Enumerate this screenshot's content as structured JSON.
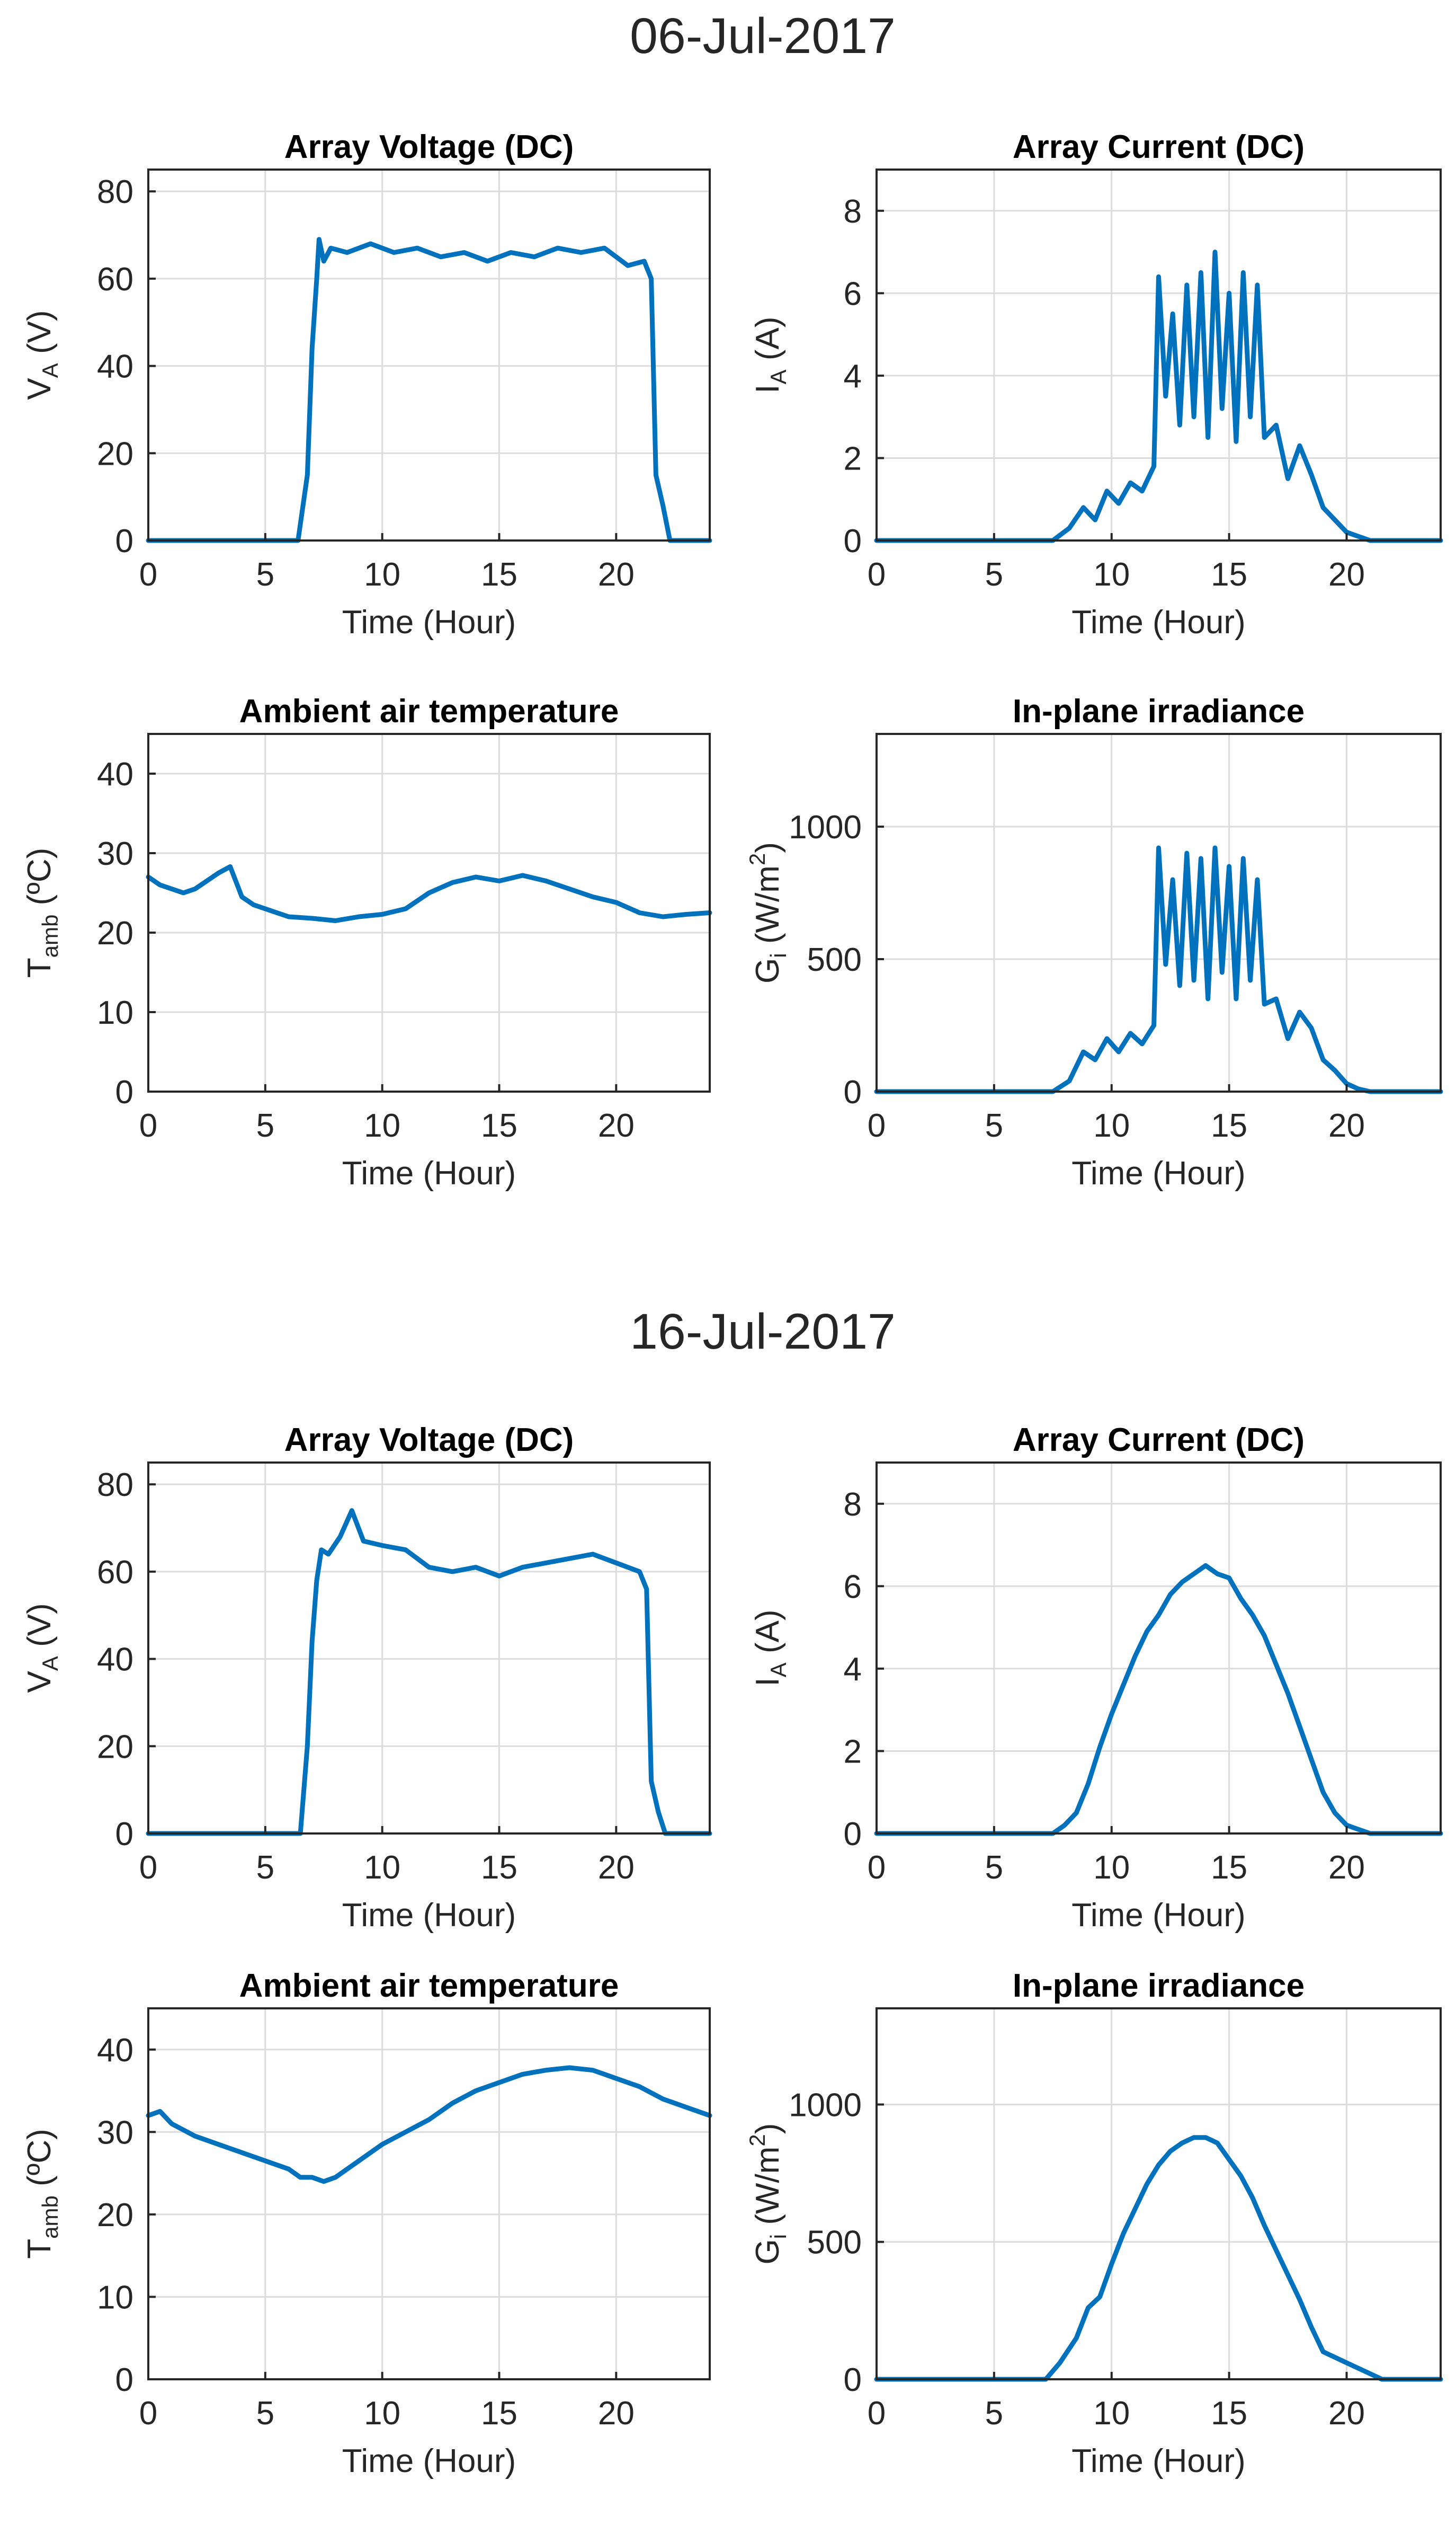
{
  "figure_titles": {
    "top": "06-Jul-2017",
    "bottom": "16-Jul-2017"
  },
  "colors": {
    "series": "#0072BD",
    "axis": "#262626",
    "grid": "#dcdcdc"
  },
  "chart_data": [
    {
      "type": "line",
      "group": "06-Jul-2017",
      "title": "Array Voltage (DC)",
      "xlabel": "Time (Hour)",
      "ylabel": {
        "main": "V",
        "sub": "A",
        "unit": " (V)"
      },
      "xlim": [
        0,
        24
      ],
      "ylim": [
        0,
        85
      ],
      "xticks": [
        0,
        5,
        10,
        15,
        20
      ],
      "yticks": [
        0,
        20,
        40,
        60,
        80
      ],
      "x": [
        0,
        6.4,
        6.8,
        7.0,
        7.2,
        7.3,
        7.5,
        7.8,
        8.5,
        9.5,
        10.5,
        11.5,
        12.5,
        13.5,
        14.5,
        15.5,
        16.5,
        17.5,
        18.5,
        19.5,
        20.5,
        21.2,
        21.5,
        21.7,
        22.0,
        22.3,
        24
      ],
      "y": [
        0,
        0,
        15,
        44,
        60,
        69,
        64,
        67,
        66,
        68,
        66,
        67,
        65,
        66,
        64,
        66,
        65,
        67,
        66,
        67,
        63,
        64,
        60,
        15,
        8,
        0,
        0
      ]
    },
    {
      "type": "line",
      "group": "06-Jul-2017",
      "title": "Array Current (DC)",
      "xlabel": "Time (Hour)",
      "ylabel": {
        "main": "I",
        "sub": "A",
        "unit": " (A)"
      },
      "xlim": [
        0,
        24
      ],
      "ylim": [
        0,
        9
      ],
      "xticks": [
        0,
        5,
        10,
        15,
        20
      ],
      "yticks": [
        0,
        2,
        4,
        6,
        8
      ],
      "x": [
        0,
        7.5,
        8.2,
        8.8,
        9.3,
        9.8,
        10.3,
        10.8,
        11.3,
        11.8,
        12.0,
        12.3,
        12.6,
        12.9,
        13.2,
        13.5,
        13.8,
        14.1,
        14.4,
        14.7,
        15.0,
        15.3,
        15.6,
        15.9,
        16.2,
        16.5,
        17.0,
        17.5,
        18.0,
        18.5,
        19.0,
        19.5,
        20.0,
        20.5,
        21.0,
        24
      ],
      "y": [
        0,
        0,
        0.3,
        0.8,
        0.5,
        1.2,
        0.9,
        1.4,
        1.2,
        1.8,
        6.4,
        3.5,
        5.5,
        2.8,
        6.2,
        3.0,
        6.5,
        2.5,
        7.0,
        3.2,
        6.0,
        2.4,
        6.5,
        3.0,
        6.2,
        2.5,
        2.8,
        1.5,
        2.3,
        1.6,
        0.8,
        0.5,
        0.2,
        0.1,
        0,
        0
      ]
    },
    {
      "type": "line",
      "group": "06-Jul-2017",
      "title": "Ambient air temperature",
      "xlabel": "Time (Hour)",
      "ylabel": {
        "main": "T",
        "sub": "amb",
        "unit": " (ºC)"
      },
      "xlim": [
        0,
        24
      ],
      "ylim": [
        0,
        45
      ],
      "xticks": [
        0,
        5,
        10,
        15,
        20
      ],
      "yticks": [
        0,
        10,
        20,
        30,
        40
      ],
      "x": [
        0,
        0.5,
        1,
        1.5,
        2,
        2.5,
        3,
        3.5,
        4,
        4.5,
        5,
        6,
        7,
        8,
        9,
        10,
        11,
        12,
        13,
        14,
        15,
        16,
        17,
        18,
        19,
        20,
        21,
        22,
        23,
        24
      ],
      "y": [
        27,
        26,
        25.5,
        25,
        25.5,
        26.5,
        27.5,
        28.3,
        24.5,
        23.5,
        23,
        22,
        21.8,
        21.5,
        22,
        22.3,
        23,
        25,
        26.3,
        27,
        26.5,
        27.2,
        26.5,
        25.5,
        24.5,
        23.8,
        22.5,
        22,
        22.3,
        22.5
      ]
    },
    {
      "type": "line",
      "group": "06-Jul-2017",
      "title": "In-plane irradiance",
      "xlabel": "Time (Hour)",
      "ylabel": {
        "main": "G",
        "sub": "i",
        "unit": " (W/m",
        "sup": "2",
        "close": ")"
      },
      "xlim": [
        0,
        24
      ],
      "ylim": [
        0,
        1350
      ],
      "xticks": [
        0,
        5,
        10,
        15,
        20
      ],
      "yticks": [
        0,
        500,
        1000
      ],
      "x": [
        0,
        7.5,
        8.2,
        8.8,
        9.3,
        9.8,
        10.3,
        10.8,
        11.3,
        11.8,
        12.0,
        12.3,
        12.6,
        12.9,
        13.2,
        13.5,
        13.8,
        14.1,
        14.4,
        14.7,
        15.0,
        15.3,
        15.6,
        15.9,
        16.2,
        16.5,
        17.0,
        17.5,
        18.0,
        18.5,
        19.0,
        19.5,
        20.0,
        20.5,
        21.0,
        24
      ],
      "y": [
        0,
        0,
        40,
        150,
        120,
        200,
        150,
        220,
        180,
        250,
        920,
        480,
        800,
        400,
        900,
        420,
        880,
        350,
        920,
        450,
        850,
        350,
        880,
        420,
        800,
        330,
        350,
        200,
        300,
        240,
        120,
        80,
        30,
        10,
        0,
        0
      ]
    },
    {
      "type": "line",
      "group": "16-Jul-2017",
      "title": "Array Voltage (DC)",
      "xlabel": "Time (Hour)",
      "ylabel": {
        "main": "V",
        "sub": "A",
        "unit": " (V)"
      },
      "xlim": [
        0,
        24
      ],
      "ylim": [
        0,
        85
      ],
      "xticks": [
        0,
        5,
        10,
        15,
        20
      ],
      "yticks": [
        0,
        20,
        40,
        60,
        80
      ],
      "x": [
        0,
        6.5,
        6.8,
        7.0,
        7.2,
        7.4,
        7.7,
        8.2,
        8.7,
        9.2,
        10,
        11,
        12,
        13,
        14,
        15,
        16,
        17,
        18,
        19,
        20,
        21,
        21.3,
        21.5,
        21.8,
        22.1,
        24
      ],
      "y": [
        0,
        0,
        20,
        44,
        58,
        65,
        64,
        68,
        74,
        67,
        66,
        65,
        61,
        60,
        61,
        59,
        61,
        62,
        63,
        64,
        62,
        60,
        56,
        12,
        5,
        0,
        0
      ]
    },
    {
      "type": "line",
      "group": "16-Jul-2017",
      "title": "Array Current (DC)",
      "xlabel": "Time (Hour)",
      "ylabel": {
        "main": "I",
        "sub": "A",
        "unit": " (A)"
      },
      "xlim": [
        0,
        24
      ],
      "ylim": [
        0,
        9
      ],
      "xticks": [
        0,
        5,
        10,
        15,
        20
      ],
      "yticks": [
        0,
        2,
        4,
        6,
        8
      ],
      "x": [
        0,
        7.5,
        8,
        8.5,
        9,
        9.5,
        10,
        10.5,
        11,
        11.5,
        12,
        12.5,
        13,
        13.5,
        14,
        14.5,
        15,
        15.5,
        16,
        16.5,
        17,
        17.5,
        18,
        18.5,
        19,
        19.5,
        20,
        20.5,
        21,
        24
      ],
      "y": [
        0,
        0,
        0.2,
        0.5,
        1.2,
        2.1,
        2.9,
        3.6,
        4.3,
        4.9,
        5.3,
        5.8,
        6.1,
        6.3,
        6.5,
        6.3,
        6.2,
        5.7,
        5.3,
        4.8,
        4.1,
        3.4,
        2.6,
        1.8,
        1.0,
        0.5,
        0.2,
        0.1,
        0,
        0
      ]
    },
    {
      "type": "line",
      "group": "16-Jul-2017",
      "title": "Ambient air temperature",
      "xlabel": "Time (Hour)",
      "ylabel": {
        "main": "T",
        "sub": "amb",
        "unit": " (ºC)"
      },
      "xlim": [
        0,
        24
      ],
      "ylim": [
        0,
        45
      ],
      "xticks": [
        0,
        5,
        10,
        15,
        20
      ],
      "yticks": [
        0,
        10,
        20,
        30,
        40
      ],
      "x": [
        0,
        0.5,
        1,
        2,
        3,
        4,
        5,
        6,
        6.5,
        7,
        7.5,
        8,
        9,
        10,
        11,
        12,
        13,
        14,
        15,
        16,
        17,
        18,
        19,
        20,
        21,
        22,
        23,
        24
      ],
      "y": [
        32,
        32.5,
        31,
        29.5,
        28.5,
        27.5,
        26.5,
        25.5,
        24.5,
        24.5,
        24,
        24.5,
        26.5,
        28.5,
        30,
        31.5,
        33.5,
        35,
        36,
        37,
        37.5,
        37.8,
        37.5,
        36.5,
        35.5,
        34,
        33,
        32
      ]
    },
    {
      "type": "line",
      "group": "16-Jul-2017",
      "title": "In-plane irradiance",
      "xlabel": "Time (Hour)",
      "ylabel": {
        "main": "G",
        "sub": "i",
        "unit": " (W/m",
        "sup": "2",
        "close": ")"
      },
      "xlim": [
        0,
        24
      ],
      "ylim": [
        0,
        1350
      ],
      "xticks": [
        0,
        5,
        10,
        15,
        20
      ],
      "yticks": [
        0,
        500,
        1000
      ],
      "x": [
        0,
        7.2,
        7.8,
        8.5,
        9,
        9.5,
        10,
        10.5,
        11,
        11.5,
        12,
        12.5,
        13,
        13.5,
        14,
        14.5,
        15,
        15.5,
        16,
        16.5,
        17,
        17.5,
        18,
        18.5,
        19,
        20,
        21,
        21.5,
        24
      ],
      "y": [
        0,
        0,
        60,
        150,
        260,
        300,
        420,
        530,
        620,
        710,
        780,
        830,
        860,
        880,
        880,
        860,
        800,
        740,
        660,
        560,
        470,
        380,
        290,
        190,
        100,
        60,
        20,
        0,
        0
      ]
    }
  ]
}
